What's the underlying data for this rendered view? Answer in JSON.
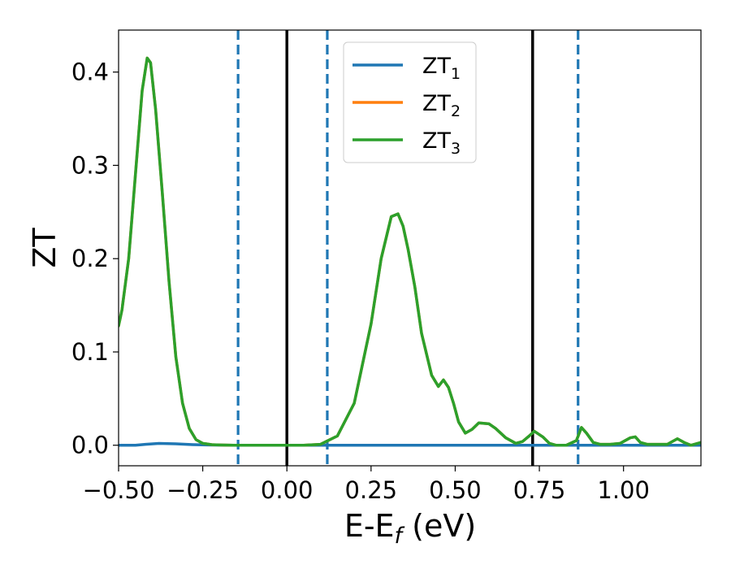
{
  "chart_data": {
    "type": "line",
    "xlabel": {
      "main": "E-E",
      "sub": "f",
      "suffix": " (eV)"
    },
    "ylabel": "ZT",
    "xlim": [
      -0.5,
      1.23
    ],
    "ylim": [
      -0.022,
      0.445
    ],
    "x_ticks": [
      {
        "value": -0.5,
        "label": "−0.50"
      },
      {
        "value": -0.25,
        "label": "−0.25"
      },
      {
        "value": 0.0,
        "label": "0.00"
      },
      {
        "value": 0.25,
        "label": "0.25"
      },
      {
        "value": 0.5,
        "label": "0.50"
      },
      {
        "value": 0.75,
        "label": "0.75"
      },
      {
        "value": 1.0,
        "label": "1.00"
      }
    ],
    "y_ticks": [
      {
        "value": 0.0,
        "label": "0.0"
      },
      {
        "value": 0.1,
        "label": "0.1"
      },
      {
        "value": 0.2,
        "label": "0.2"
      },
      {
        "value": 0.3,
        "label": "0.3"
      },
      {
        "value": 0.4,
        "label": "0.4"
      }
    ],
    "grid": false,
    "legend_position": "top-center",
    "vlines": [
      {
        "x": 0.0,
        "style": "solid",
        "color": "#000000"
      },
      {
        "x": 0.73,
        "style": "solid",
        "color": "#000000"
      },
      {
        "x": -0.145,
        "style": "dashed",
        "color": "#1f77b4"
      },
      {
        "x": 0.12,
        "style": "dashed",
        "color": "#1f77b4"
      },
      {
        "x": 0.865,
        "style": "dashed",
        "color": "#1f77b4"
      }
    ],
    "series": [
      {
        "name": "ZT",
        "sub": "1",
        "color": "#1f77b4",
        "x": [
          -0.5,
          -0.45,
          -0.42,
          -0.38,
          -0.33,
          -0.28,
          -0.22,
          -0.15,
          -0.05,
          0.1,
          0.3,
          0.5,
          0.7,
          0.9,
          1.1,
          1.23
        ],
        "y": [
          0.0,
          0.0,
          0.001,
          0.002,
          0.0015,
          0.0007,
          0.0002,
          0.0,
          0.0,
          0.0,
          0.0,
          0.0,
          0.0,
          0.0,
          0.0,
          0.0
        ]
      },
      {
        "name": "ZT",
        "sub": "2",
        "color": "#ff7f0e",
        "x": [
          -0.5,
          -0.49,
          -0.47,
          -0.45,
          -0.43,
          -0.415,
          -0.405,
          -0.39,
          -0.37,
          -0.35,
          -0.33,
          -0.31,
          -0.29,
          -0.27,
          -0.25,
          -0.22,
          -0.19,
          -0.16,
          -0.1,
          0.0,
          0.05,
          0.1,
          0.15,
          0.2,
          0.25,
          0.28,
          0.31,
          0.33,
          0.345,
          0.36,
          0.38,
          0.4,
          0.43,
          0.45,
          0.465,
          0.48,
          0.495,
          0.51,
          0.53,
          0.55,
          0.57,
          0.6,
          0.62,
          0.65,
          0.68,
          0.7,
          0.72,
          0.735,
          0.76,
          0.78,
          0.8,
          0.83,
          0.86,
          0.875,
          0.89,
          0.91,
          0.93,
          0.96,
          0.99,
          1.02,
          1.035,
          1.05,
          1.07,
          1.1,
          1.13,
          1.16,
          1.18,
          1.2,
          1.23
        ],
        "y": [
          0.128,
          0.145,
          0.2,
          0.29,
          0.38,
          0.415,
          0.41,
          0.36,
          0.27,
          0.175,
          0.095,
          0.045,
          0.018,
          0.006,
          0.002,
          0.0005,
          0.0002,
          0.0,
          0.0,
          0.0,
          0.0,
          0.001,
          0.01,
          0.045,
          0.13,
          0.2,
          0.245,
          0.248,
          0.235,
          0.21,
          0.17,
          0.12,
          0.075,
          0.063,
          0.07,
          0.062,
          0.045,
          0.025,
          0.013,
          0.017,
          0.024,
          0.023,
          0.018,
          0.008,
          0.002,
          0.004,
          0.01,
          0.015,
          0.009,
          0.002,
          0.0,
          0.0,
          0.005,
          0.019,
          0.013,
          0.003,
          0.001,
          0.001,
          0.002,
          0.008,
          0.009,
          0.003,
          0.001,
          0.001,
          0.001,
          0.007,
          0.003,
          0.0,
          0.003
        ]
      },
      {
        "name": "ZT",
        "sub": "3",
        "color": "#2ca02c",
        "x": [
          -0.5,
          -0.49,
          -0.47,
          -0.45,
          -0.43,
          -0.415,
          -0.405,
          -0.39,
          -0.37,
          -0.35,
          -0.33,
          -0.31,
          -0.29,
          -0.27,
          -0.25,
          -0.22,
          -0.19,
          -0.16,
          -0.1,
          0.0,
          0.05,
          0.1,
          0.15,
          0.2,
          0.25,
          0.28,
          0.31,
          0.33,
          0.345,
          0.36,
          0.38,
          0.4,
          0.43,
          0.45,
          0.465,
          0.48,
          0.495,
          0.51,
          0.53,
          0.55,
          0.57,
          0.6,
          0.62,
          0.65,
          0.68,
          0.7,
          0.72,
          0.735,
          0.76,
          0.78,
          0.8,
          0.83,
          0.86,
          0.875,
          0.89,
          0.91,
          0.93,
          0.96,
          0.99,
          1.02,
          1.035,
          1.05,
          1.07,
          1.1,
          1.13,
          1.16,
          1.18,
          1.2,
          1.23
        ],
        "y": [
          0.128,
          0.145,
          0.2,
          0.29,
          0.38,
          0.415,
          0.41,
          0.36,
          0.27,
          0.175,
          0.095,
          0.045,
          0.018,
          0.006,
          0.002,
          0.0005,
          0.0002,
          0.0,
          0.0,
          0.0,
          0.0,
          0.001,
          0.01,
          0.045,
          0.13,
          0.2,
          0.245,
          0.248,
          0.235,
          0.21,
          0.17,
          0.12,
          0.075,
          0.063,
          0.07,
          0.062,
          0.045,
          0.025,
          0.013,
          0.017,
          0.024,
          0.023,
          0.018,
          0.008,
          0.002,
          0.004,
          0.01,
          0.015,
          0.009,
          0.002,
          0.0,
          0.0,
          0.005,
          0.019,
          0.013,
          0.003,
          0.001,
          0.001,
          0.002,
          0.008,
          0.009,
          0.003,
          0.001,
          0.001,
          0.001,
          0.007,
          0.003,
          0.0,
          0.003
        ]
      }
    ]
  }
}
